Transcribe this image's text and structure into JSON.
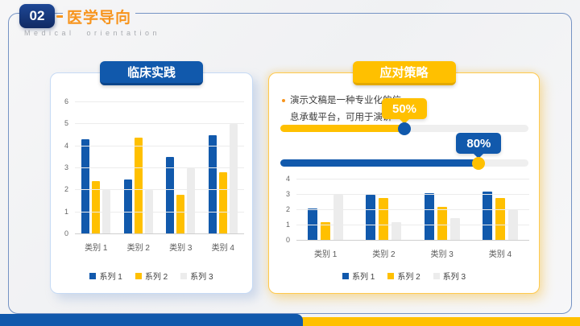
{
  "slide": {
    "page_number": "02",
    "title": "医学导向",
    "subtitle": "Medical orientation"
  },
  "left_card": {
    "badge": "临床实践"
  },
  "right_card": {
    "badge": "应对策略",
    "bullet_lines": [
      "演示文稿是一种专业化的信",
      "息承载平台，可用于演讲"
    ],
    "sliders": [
      {
        "label": "50%",
        "value": 50,
        "fill_color": "#FFC000",
        "knob_color": "#1159AC",
        "callout_color": "#FFC000"
      },
      {
        "label": "80%",
        "value": 80,
        "fill_color": "#1159AC",
        "knob_color": "#FFC000",
        "callout_color": "#1159AC"
      }
    ]
  },
  "chart_data": [
    {
      "type": "bar",
      "title": "临床实践",
      "categories": [
        "类别 1",
        "类别 2",
        "类别 3",
        "类别 4"
      ],
      "series": [
        {
          "name": "系列 1",
          "color": "#1159AC",
          "values": [
            4.3,
            2.5,
            3.5,
            4.5
          ]
        },
        {
          "name": "系列 2",
          "color": "#FFC000",
          "values": [
            2.4,
            4.4,
            1.8,
            2.8
          ]
        },
        {
          "name": "系列 3",
          "color": "#ECECEC",
          "values": [
            2,
            2,
            3,
            5
          ]
        }
      ],
      "xlabel": "",
      "ylabel": "",
      "ylim": [
        0,
        6
      ],
      "ytick_step": 1,
      "grid": true,
      "legend_position": "bottom"
    },
    {
      "type": "bar",
      "title": "应对策略",
      "categories": [
        "类别 1",
        "类别 2",
        "类别 3",
        "类别 4"
      ],
      "series": [
        {
          "name": "系列 1",
          "color": "#1159AC",
          "values": [
            2.1,
            3.0,
            3.1,
            3.2
          ]
        },
        {
          "name": "系列 2",
          "color": "#FFC000",
          "values": [
            1.2,
            2.8,
            2.2,
            2.8
          ]
        },
        {
          "name": "系列 3",
          "color": "#ECECEC",
          "values": [
            3.0,
            1.2,
            1.5,
            2.0
          ]
        }
      ],
      "xlabel": "",
      "ylabel": "",
      "ylim": [
        0,
        4
      ],
      "ytick_step": 1,
      "grid": true,
      "legend_position": "bottom"
    }
  ],
  "colors": {
    "primary_blue": "#1159AC",
    "accent_yellow": "#FFC000",
    "navy_badge": "#16337E",
    "title_orange": "#F7941D",
    "track_gray": "#EFEFEF",
    "footer_blue": "#1159AC",
    "footer_yellow": "#FFC000"
  }
}
